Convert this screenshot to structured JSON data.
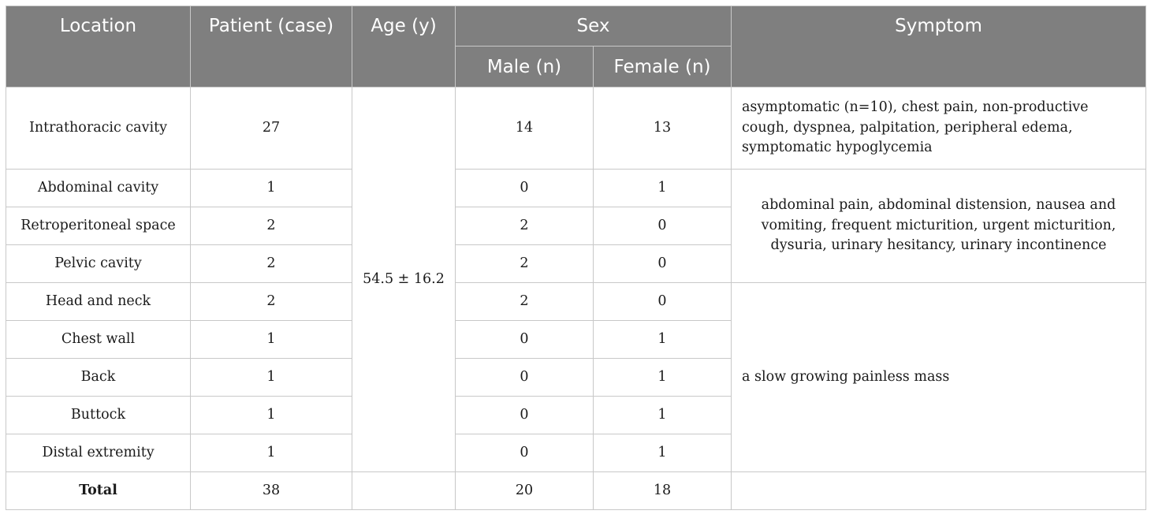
{
  "headers": {
    "location": "Location",
    "patient": "Patient (case)",
    "age": "Age (y)",
    "sex": "Sex",
    "male": "Male (n)",
    "female": "Female (n)",
    "symptom": "Symptom"
  },
  "age_value": "54.5 ± 16.2",
  "rows": [
    {
      "location": "Intrathoracic cavity",
      "patients": "27",
      "male": "14",
      "female": "13"
    },
    {
      "location": "Abdominal cavity",
      "patients": "1",
      "male": "0",
      "female": "1"
    },
    {
      "location": "Retroperitoneal space",
      "patients": "2",
      "male": "2",
      "female": "0"
    },
    {
      "location": "Pelvic cavity",
      "patients": "2",
      "male": "2",
      "female": "0"
    },
    {
      "location": "Head and neck",
      "patients": "2",
      "male": "2",
      "female": "0"
    },
    {
      "location": "Chest wall",
      "patients": "1",
      "male": "0",
      "female": "1"
    },
    {
      "location": "Back",
      "patients": "1",
      "male": "0",
      "female": "1"
    },
    {
      "location": "Buttock",
      "patients": "1",
      "male": "0",
      "female": "1"
    },
    {
      "location": "Distal extremity",
      "patients": "1",
      "male": "0",
      "female": "1"
    }
  ],
  "symptoms": {
    "thoracic": "asymptomatic (n=10), chest pain, non-productive cough, dyspnea, palpitation, peripheral edema, symptomatic hypoglycemia",
    "abdominal": "abdominal pain, abdominal distension, nausea and vomiting, frequent micturition, urgent micturition, dysuria, urinary hesitancy, urinary incontinence",
    "mass": "a slow growing painless mass"
  },
  "total": {
    "label": "Total",
    "patients": "38",
    "male": "20",
    "female": "18"
  }
}
